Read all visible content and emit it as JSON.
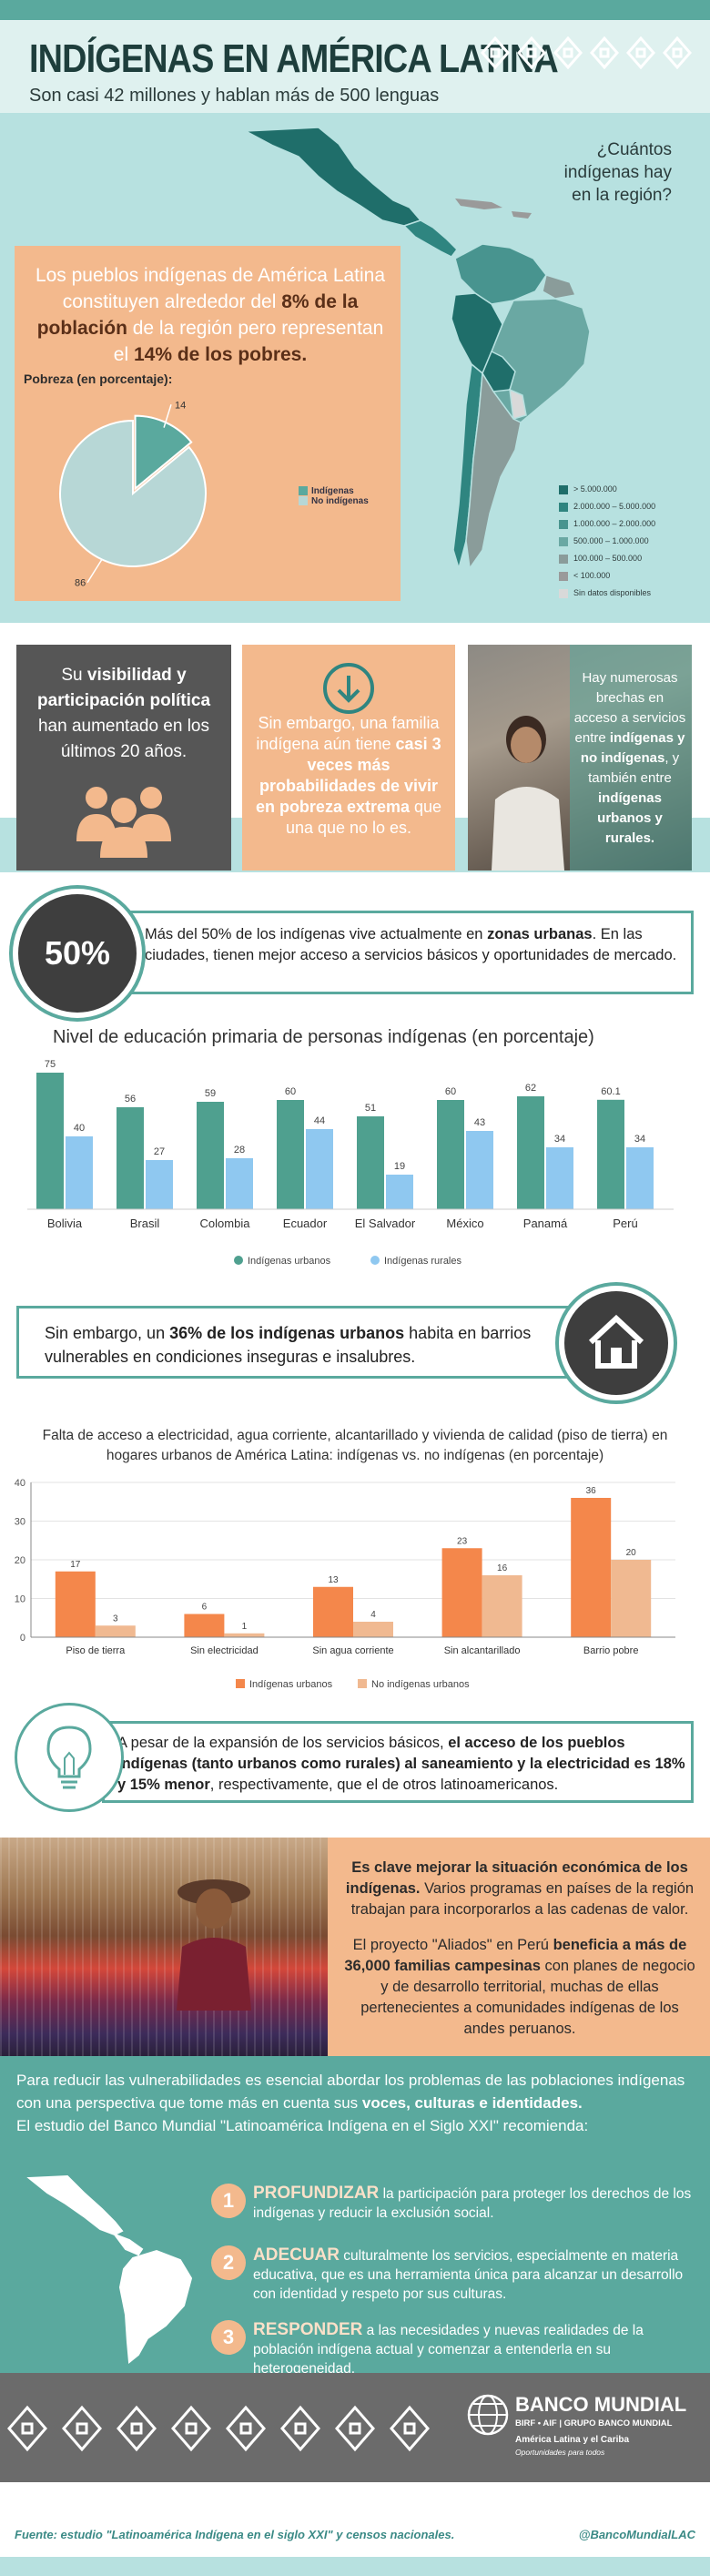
{
  "header": {
    "title": "INDÍGENAS EN AMÉRICA LATINA",
    "subtitle": "Son casi 42 millones y hablan más de 500 lenguas"
  },
  "map": {
    "question": "¿Cuántos indígenas hay en la región?",
    "legend": [
      {
        "label": "> 5.000.000",
        "color": "#1f6e6a"
      },
      {
        "label": "2.000.000 – 5.000.000",
        "color": "#2f8580"
      },
      {
        "label": "1.000.000 – 2.000.000",
        "color": "#48948f"
      },
      {
        "label": "500.000 – 1.000.000",
        "color": "#6aa8a3"
      },
      {
        "label": "100.000 – 500.000",
        "color": "#8a9c9a"
      },
      {
        "label": "< 100.000",
        "color": "#9a9a9a"
      },
      {
        "label": "Sin datos disponibles",
        "color": "#d9d9d9"
      }
    ]
  },
  "poverty": {
    "lead_1": "Los pueblos indígenas de América Latina constituyen alrededor del ",
    "lead_2": "8% de la población",
    "lead_3": " de la región pero representan el ",
    "lead_4": "14% de los pobres.",
    "pie_title": "Pobreza (en porcentaje):",
    "legend_indigenous": "Indígenas",
    "legend_non": "No indígenas"
  },
  "cards": {
    "dark_1": "Su ",
    "dark_2": "visibilidad y participación política",
    "dark_3": " han aumentado en los últimos 20 años.",
    "orange_1": "Sin embargo, una familia indígena aún tiene ",
    "orange_2": "casi 3 veces más probabilidades de vivir en pobreza extrema",
    "orange_3": " que una que no lo es.",
    "photo_1": "Hay numerosas brechas en acceso a servicios entre ",
    "photo_2": "indígenas y no indígenas",
    "photo_3": ", y también entre ",
    "photo_4": "indígenas urbanos y rurales."
  },
  "urban": {
    "big": "50%",
    "text_1": "Más del 50% de los indígenas vive actualmente en ",
    "text_2": "zonas urbanas",
    "text_3": ". En las ciudades, tienen mejor acceso a servicios básicos y oportunidades de mercado."
  },
  "vulnerable": {
    "text_1": "Sin embargo, un ",
    "text_2": "36% de los indígenas urbanos",
    "text_3": " habita en barrios vulnerables en condiciones inseguras e insalubres."
  },
  "chart2_title": "Falta de acceso a electricidad, agua corriente, alcantarillado y vivienda de calidad (piso de tierra) en hogares urbanos de América Latina: indígenas vs. no indígenas (en porcentaje)",
  "services": {
    "text_1": "A pesar de la expansión de los servicios básicos, ",
    "text_2": "el acceso de los pueblos indígenas (tanto urbanos como rurales) al saneamiento y la electricidad es 18% y 15% menor",
    "text_3": ", respectivamente, que el de otros latinoamericanos."
  },
  "economy": {
    "p1_bold": "Es clave mejorar la situación económica de los indígenas.",
    "p1_rest": " Varios programas en países de la región trabajan para incorporarlos a las cadenas de valor.",
    "p2_1": "El proyecto \"Aliados\" en Perú ",
    "p2_2": "beneficia a más de 36,000 familias campesinas",
    "p2_3": " con planes de negocio y de desarrollo territorial, muchas de ellas pertenecientes a comunidades indígenas de los andes peruanos."
  },
  "recommend": {
    "intro_1": "Para reducir las vulnerabilidades es esencial abordar los problemas de las poblaciones indígenas con una perspectiva que tome más en cuenta sus ",
    "intro_2": "voces, culturas e identidades.",
    "intro_3": "El estudio del Banco Mundial \"Latinoamérica Indígena en el Siglo XXI\" recomienda:",
    "items": [
      {
        "num": "1",
        "head": "PROFUNDIZAR",
        "text": " la participación para proteger los derechos de los indígenas y reducir la exclusión social."
      },
      {
        "num": "2",
        "head": "ADECUAR",
        "text": " culturalmente los servicios, especialmente en materia educativa, que es una herramienta única para alcanzar un desarrollo con identidad y respeto por sus culturas."
      },
      {
        "num": "3",
        "head": "RESPONDER",
        "text": " a las necesidades y nuevas realidades de la población indígena actual y comenzar a entenderla en su heterogeneidad."
      }
    ]
  },
  "footer": {
    "org": "BANCO MUNDIAL",
    "org_sub": "BIRF • AIF | GRUPO BANCO MUNDIAL",
    "region": "América Latina y el Cariba",
    "tagline": "Oportunidades para todos",
    "source": "Fuente: estudio \"Latinoamérica Indígena en el siglo XXI\" y censos nacionales.",
    "handle": "@BancoMundialLAC"
  },
  "chart_data": [
    {
      "type": "pie",
      "title": "Pobreza (en porcentaje):",
      "categories": [
        "Indígenas",
        "No indígenas"
      ],
      "values": [
        14,
        86
      ],
      "colors": [
        "#5aa99e",
        "#b7d7d6"
      ],
      "legend": "right"
    },
    {
      "type": "bar",
      "title": "Nivel de educación primaria de personas indígenas (en porcentaje)",
      "categories": [
        "Bolivia",
        "Brasil",
        "Colombia",
        "Ecuador",
        "El Salvador",
        "México",
        "Panamá",
        "Perú"
      ],
      "series": [
        {
          "name": "Indígenas urbanos",
          "values": [
            75,
            56,
            59,
            60,
            51,
            60,
            62,
            60.1
          ],
          "color": "#4fa08f"
        },
        {
          "name": "Indígenas rurales",
          "values": [
            40,
            27,
            28,
            44,
            19,
            43,
            34,
            34
          ],
          "color": "#8fc8f0"
        }
      ],
      "value_labels": {
        "0": [
          "75",
          "40"
        ],
        "1": [
          "56",
          "27"
        ],
        "2": [
          "59",
          "28"
        ],
        "3": [
          "60",
          "44"
        ],
        "4": [
          "51",
          "19"
        ],
        "5": [
          "60",
          "43"
        ],
        "6": [
          "62",
          "34"
        ],
        "7": [
          "60.1",
          "34"
        ]
      },
      "legend": "bottom",
      "grid": false
    },
    {
      "type": "bar",
      "title": "Falta de acceso a electricidad, agua corriente, alcantarillado y vivienda de calidad (piso de tierra) en hogares urbanos de América Latina: indígenas vs. no indígenas (en porcentaje)",
      "categories": [
        "Piso de tierra",
        "Sin electricidad",
        "Sin agua corriente",
        "Sin alcantarillado",
        "Barrio pobre"
      ],
      "series": [
        {
          "name": "Indígenas urbanos",
          "values": [
            17,
            6,
            13,
            23,
            36
          ],
          "color": "#f4874b"
        },
        {
          "name": "No indígenas urbanos",
          "values": [
            3,
            1,
            4,
            16,
            20
          ],
          "color": "#f0b991"
        }
      ],
      "yticks": [
        "0",
        "10",
        "20",
        "30",
        "40"
      ],
      "ylim": [
        0,
        40
      ],
      "legend": "bottom",
      "grid": true
    }
  ]
}
